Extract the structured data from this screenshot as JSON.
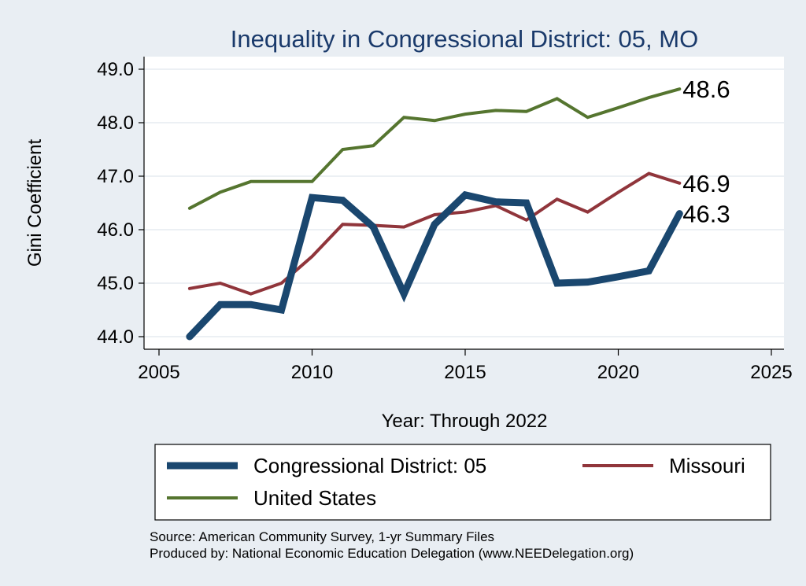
{
  "chart_data": {
    "type": "line",
    "title": "Inequality in Congressional District:  05, MO",
    "xlabel": "Year: Through 2022",
    "ylabel": "Gini Coefficient",
    "xlim": [
      2005,
      2025
    ],
    "ylim": [
      44.0,
      49.0
    ],
    "x_ticks": [
      "2005",
      "2010",
      "2015",
      "2020",
      "2025"
    ],
    "y_ticks": [
      "44.0",
      "45.0",
      "46.0",
      "47.0",
      "48.0",
      "49.0"
    ],
    "series": [
      {
        "name": "Congressional District:  05",
        "color": "#1a476f",
        "x": [
          2006,
          2007,
          2008,
          2009,
          2010,
          2011,
          2012,
          2013,
          2014,
          2015,
          2016,
          2017,
          2018,
          2019,
          2020,
          2021,
          2022
        ],
        "values": [
          44.0,
          44.6,
          44.6,
          44.5,
          46.6,
          46.55,
          46.05,
          44.8,
          46.1,
          46.65,
          46.52,
          46.5,
          45.0,
          45.02,
          45.12,
          45.23,
          46.3
        ],
        "end_label": "46.3"
      },
      {
        "name": "Missouri",
        "color": "#90353b",
        "x": [
          2006,
          2007,
          2008,
          2009,
          2010,
          2011,
          2012,
          2013,
          2014,
          2015,
          2016,
          2017,
          2018,
          2019,
          2020,
          2021,
          2022
        ],
        "values": [
          44.9,
          45.0,
          44.8,
          45.0,
          45.5,
          46.1,
          46.08,
          46.05,
          46.28,
          46.33,
          46.45,
          46.18,
          46.57,
          46.33,
          46.7,
          47.05,
          46.87
        ],
        "end_label": "46.9"
      },
      {
        "name": "United States",
        "color": "#55752f",
        "x": [
          2006,
          2007,
          2008,
          2009,
          2010,
          2011,
          2012,
          2013,
          2014,
          2015,
          2016,
          2017,
          2018,
          2019,
          2020,
          2021,
          2022
        ],
        "values": [
          46.4,
          46.7,
          46.9,
          46.9,
          46.9,
          47.5,
          47.57,
          48.1,
          48.04,
          48.16,
          48.23,
          48.21,
          48.45,
          48.1,
          48.28,
          48.47,
          48.63
        ],
        "end_label": "48.6"
      }
    ],
    "legend": [
      "Congressional District:  05",
      "Missouri",
      "United States"
    ],
    "legend_position": "bottom"
  },
  "source_lines": [
    "Source: American Community Survey, 1-yr Summary Files",
    "Produced by: National Economic Education Delegation (www.NEEDelegation.org)"
  ]
}
